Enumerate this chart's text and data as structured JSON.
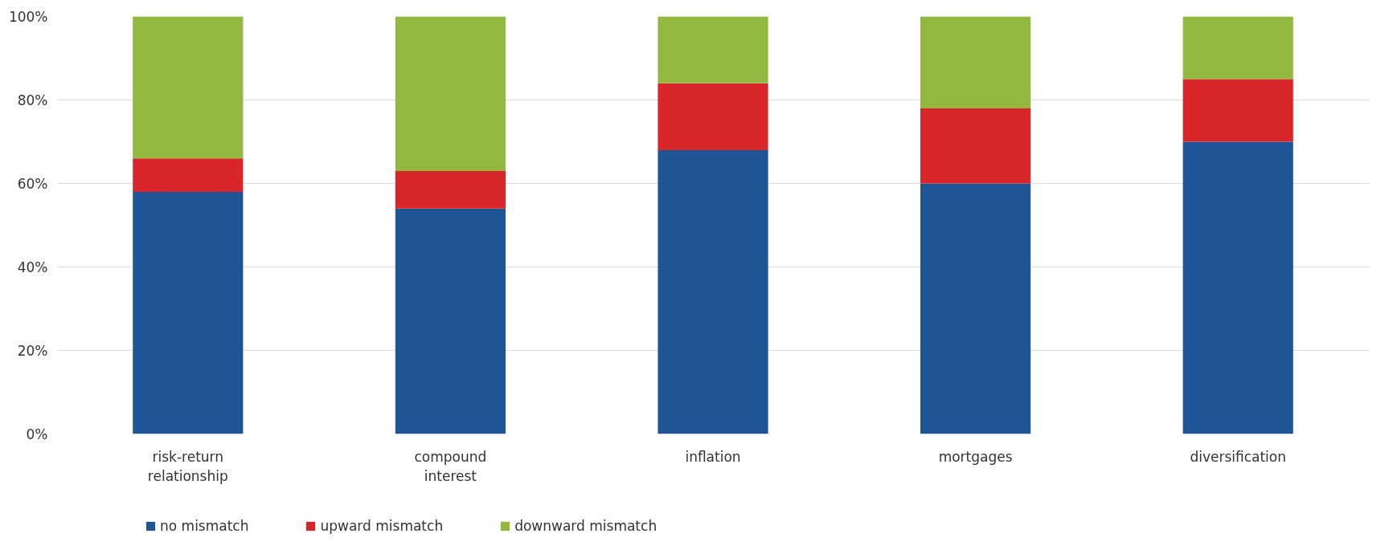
{
  "chart_data": {
    "type": "bar",
    "stacked": true,
    "categories": [
      "risk-return\nrelationship",
      "compound\ninterest",
      "inflation",
      "mortgages",
      "diversification"
    ],
    "series": [
      {
        "name": "no mismatch",
        "color": "#1f5597",
        "values": [
          58,
          54,
          68,
          60,
          70
        ]
      },
      {
        "name": "upward mismatch",
        "color": "#d9262b",
        "values": [
          8,
          9,
          16,
          18,
          15
        ]
      },
      {
        "name": "downward mismatch",
        "color": "#93b83f",
        "values": [
          34,
          37,
          16,
          22,
          15
        ]
      }
    ],
    "ylim": [
      0,
      100
    ],
    "yticks": [
      {
        "value": 0,
        "label": "0%"
      },
      {
        "value": 20,
        "label": "20%"
      },
      {
        "value": 40,
        "label": "40%"
      },
      {
        "value": 60,
        "label": "60%"
      },
      {
        "value": 80,
        "label": "80%"
      },
      {
        "value": 100,
        "label": "100%"
      }
    ],
    "grid": "y",
    "legend": "bottom left"
  }
}
